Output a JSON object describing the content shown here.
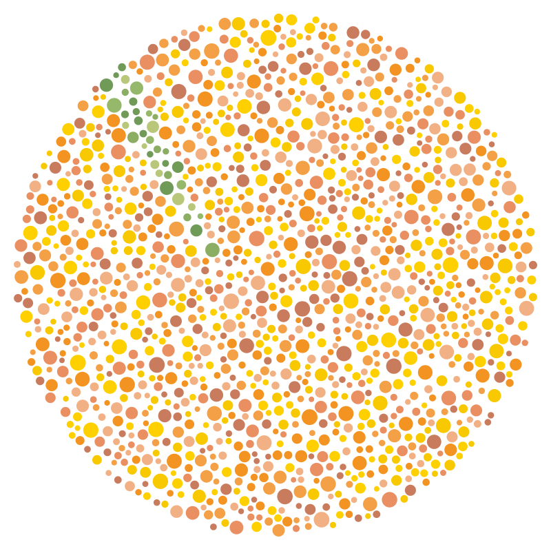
{
  "plate": {
    "kind": "color-vision-test-plate",
    "background_colors": [
      "#c97b5d",
      "#e98f62",
      "#f2b184",
      "#f4a046",
      "#f39322",
      "#ffd000",
      "#f8c800"
    ],
    "figure_colors": [
      "#b9c77b",
      "#8cae63",
      "#6f9a57",
      "#95b86b"
    ]
  }
}
